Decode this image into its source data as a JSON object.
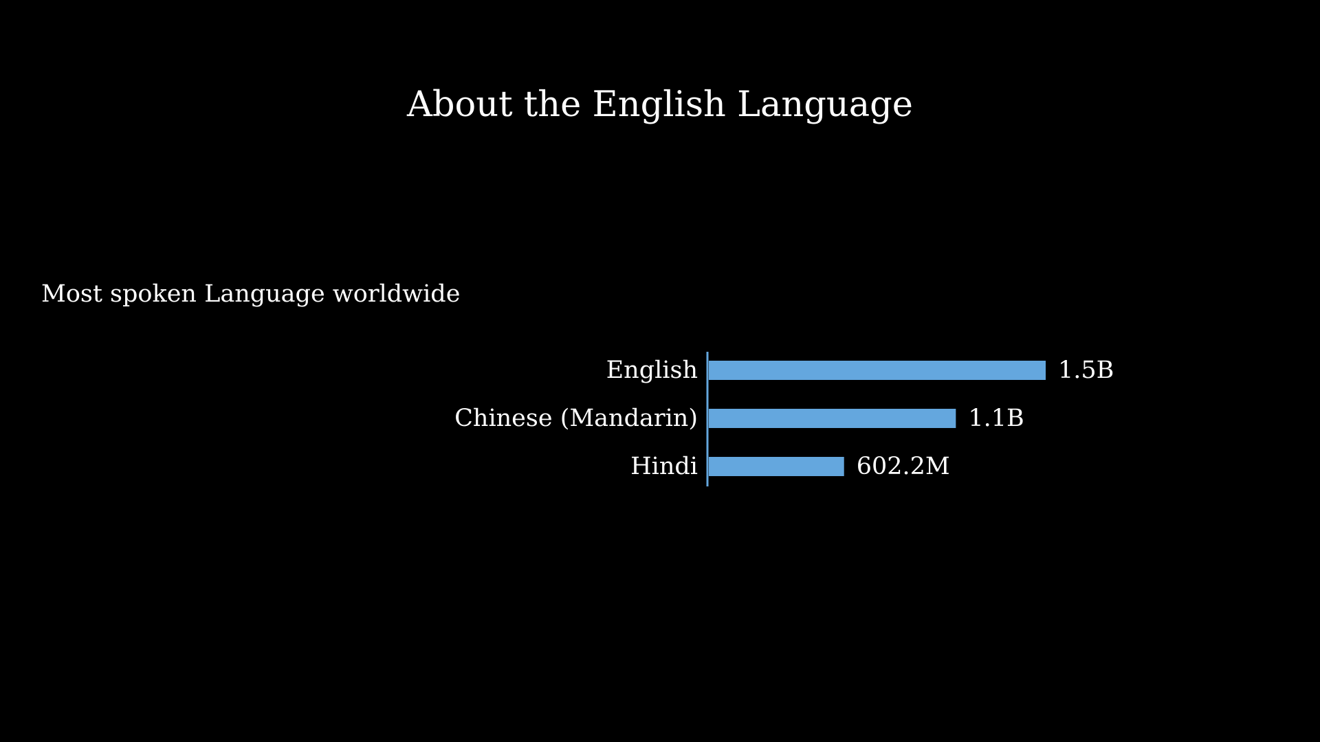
{
  "slide": {
    "title": "About the English Language"
  },
  "chart_data": {
    "type": "bar",
    "orientation": "horizontal",
    "title": "Most spoken Language worldwide",
    "categories": [
      "English",
      "Chinese (Mandarin)",
      "Hindi"
    ],
    "values": [
      1500000000,
      1100000000,
      602200000
    ],
    "data_labels": [
      "1.5B",
      "1.1B",
      "602.2M"
    ],
    "xlabel": "",
    "ylabel": "",
    "xlim": [
      0,
      1500000000
    ],
    "grid": false,
    "legend": "none",
    "bar_color": "#64A7DE",
    "axis_color": "#64A7DE"
  }
}
